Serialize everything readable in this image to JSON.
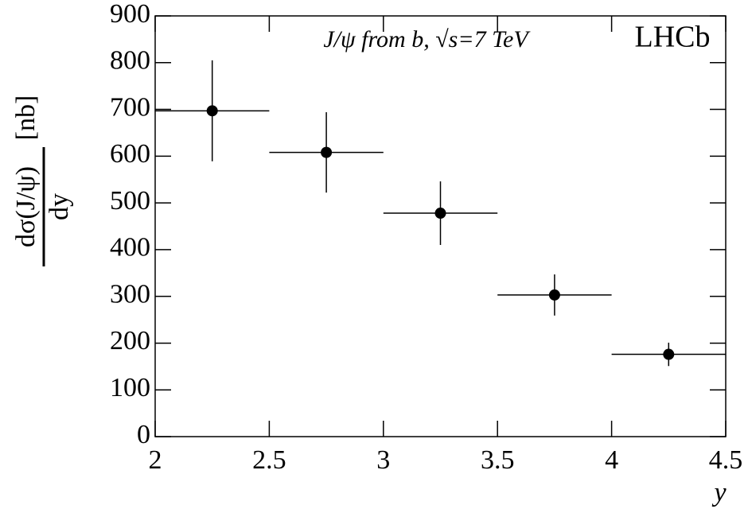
{
  "chart_data": {
    "type": "errorbar",
    "annotation": "J/ψ from b, √s=7 TeV",
    "experiment_label": "LHCb",
    "y_label": {
      "numerator": "dσ(J/ψ)",
      "denominator": "dy",
      "unit": "[nb]"
    },
    "x_label": "y",
    "xlim": [
      2,
      4.5
    ],
    "xticks": [
      2,
      2.5,
      3,
      3.5,
      4,
      4.5
    ],
    "ylim": [
      0,
      900
    ],
    "yticks": [
      0,
      100,
      200,
      300,
      400,
      500,
      600,
      700,
      800,
      900
    ],
    "series": [
      {
        "color": "#000000",
        "x": [
          2.25,
          2.75,
          3.25,
          3.75,
          4.25
        ],
        "xerr": [
          0.25,
          0.25,
          0.25,
          0.25,
          0.25
        ],
        "values": [
          697,
          608,
          478,
          303,
          176
        ],
        "yerr": [
          108,
          86,
          68,
          44,
          25
        ]
      }
    ]
  }
}
